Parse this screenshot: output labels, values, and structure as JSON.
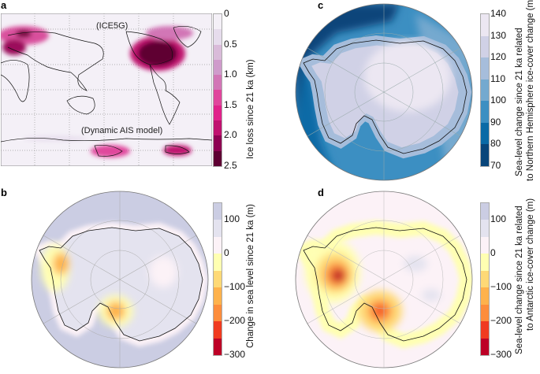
{
  "panels": {
    "a": {
      "label": "a",
      "annotation_top": "(ICE5G)",
      "annotation_bottom": "(Dynamic AIS model)",
      "colorbar": {
        "title": "Ice loss since 21 ka (km)",
        "ticks": [
          "0",
          "0.5",
          "1.0",
          "1.5",
          "2.0",
          "2.5"
        ],
        "colors": [
          "#f4f0f7",
          "#e6dcec",
          "#d9bbd9",
          "#cf9bcb",
          "#d276b6",
          "#e0469c",
          "#e0228a",
          "#c0126f",
          "#8e0152",
          "#5e0033"
        ]
      }
    },
    "b": {
      "label": "b",
      "colorbar": {
        "title": "Change in sea level since 21 ka (m)",
        "ticks": [
          "100",
          "0",
          "−100",
          "−200",
          "−300"
        ],
        "colors": [
          "#cbcde3",
          "#e4e3ef",
          "#fcf2f7",
          "#ffffb2",
          "#fed976",
          "#feb24c",
          "#fd8d3c",
          "#f03b20",
          "#bd0026"
        ]
      }
    },
    "c": {
      "label": "c",
      "colorbar": {
        "title_line1": "Sea-level change since 21 ka related",
        "title_line2": "to Northern Hemisphere ice-cover change (m)",
        "ticks": [
          "140",
          "130",
          "120",
          "110",
          "100",
          "90",
          "80",
          "70"
        ],
        "colors": [
          "#08457a",
          "#0a6aa6",
          "#3c8fc2",
          "#74a9cf",
          "#a6bddb",
          "#d0d1e6",
          "#ece7f2"
        ]
      }
    },
    "d": {
      "label": "d",
      "colorbar": {
        "title_line1": "Sea-level change since 21 ka related",
        "title_line2": "to Antarctic ice-cover change (m)",
        "ticks": [
          "100",
          "0",
          "−100",
          "−200",
          "−300"
        ],
        "colors": [
          "#cbcde3",
          "#e4e3ef",
          "#fcf2f7",
          "#ffffb2",
          "#fed976",
          "#feb24c",
          "#fd8d3c",
          "#f03b20",
          "#bd0026"
        ]
      }
    }
  }
}
